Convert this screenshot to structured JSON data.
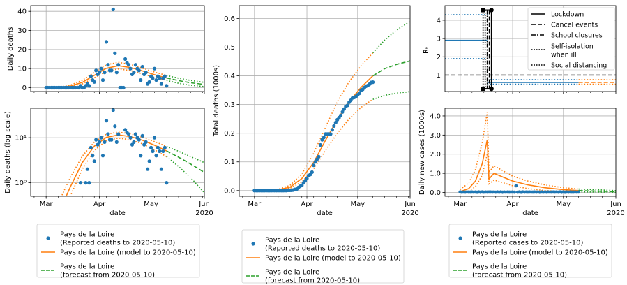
{
  "colors": {
    "reported": "#1f77b4",
    "model": "#ff7f0e",
    "forecast": "#2ca02c",
    "grid": "#b0b0b0"
  },
  "chart_data": [
    {
      "id": "daily",
      "type": "scatter",
      "ylabel": "Daily deaths",
      "xlabel": "",
      "ylim": [
        -2,
        43
      ],
      "yticks": [
        0,
        10,
        20,
        30,
        40
      ],
      "grid": true,
      "reported": {
        "x": [
          "2020-03-01",
          "2020-03-02",
          "2020-03-03",
          "2020-03-04",
          "2020-03-05",
          "2020-03-06",
          "2020-03-07",
          "2020-03-08",
          "2020-03-09",
          "2020-03-10",
          "2020-03-11",
          "2020-03-12",
          "2020-03-13",
          "2020-03-14",
          "2020-03-15",
          "2020-03-16",
          "2020-03-17",
          "2020-03-18",
          "2020-03-19",
          "2020-03-20",
          "2020-03-21",
          "2020-03-22",
          "2020-03-23",
          "2020-03-24",
          "2020-03-25",
          "2020-03-26",
          "2020-03-27",
          "2020-03-28",
          "2020-03-29",
          "2020-03-30",
          "2020-03-31",
          "2020-04-01",
          "2020-04-02",
          "2020-04-03",
          "2020-04-04",
          "2020-04-05",
          "2020-04-06",
          "2020-04-07",
          "2020-04-08",
          "2020-04-09",
          "2020-04-10",
          "2020-04-11",
          "2020-04-12",
          "2020-04-13",
          "2020-04-14",
          "2020-04-15",
          "2020-04-16",
          "2020-04-17",
          "2020-04-18",
          "2020-04-19",
          "2020-04-20",
          "2020-04-21",
          "2020-04-22",
          "2020-04-23",
          "2020-04-24",
          "2020-04-25",
          "2020-04-26",
          "2020-04-27",
          "2020-04-28",
          "2020-04-29",
          "2020-04-30",
          "2020-05-01",
          "2020-05-02",
          "2020-05-03",
          "2020-05-04",
          "2020-05-05",
          "2020-05-06",
          "2020-05-07",
          "2020-05-08",
          "2020-05-09",
          "2020-05-10"
        ],
        "y": [
          0,
          0,
          0,
          0,
          0,
          0,
          0,
          0,
          0,
          0,
          0,
          0,
          0,
          0,
          0,
          0,
          0,
          0,
          0,
          0,
          1,
          0,
          0,
          1,
          2,
          1,
          6,
          4,
          3,
          9,
          7,
          8,
          10,
          4,
          8,
          24,
          12,
          9,
          9,
          41,
          18,
          8,
          12,
          0,
          0,
          0,
          15,
          13,
          12,
          10,
          7,
          8,
          12,
          10,
          9,
          4,
          11,
          7,
          8,
          2,
          3,
          6,
          5,
          10,
          4,
          6,
          5,
          2,
          5,
          6,
          1
        ]
      },
      "model": {
        "x": [
          "2020-03-01",
          "2020-03-08",
          "2020-03-15",
          "2020-03-22",
          "2020-03-29",
          "2020-04-05",
          "2020-04-12",
          "2020-04-19",
          "2020-04-26",
          "2020-05-03",
          "2020-05-10"
        ],
        "y": [
          0.05,
          0.2,
          0.8,
          2.8,
          6.5,
          10.2,
          11.5,
          10.6,
          8.8,
          6.8,
          5.1
        ]
      },
      "model_low": {
        "x": [
          "2020-03-01",
          "2020-03-08",
          "2020-03-15",
          "2020-03-22",
          "2020-03-29",
          "2020-04-05",
          "2020-04-12",
          "2020-04-19",
          "2020-04-26",
          "2020-05-03",
          "2020-05-10"
        ],
        "y": [
          0.02,
          0.1,
          0.5,
          2.0,
          5.2,
          8.6,
          9.8,
          9.0,
          7.3,
          5.4,
          3.8
        ]
      },
      "model_high": {
        "x": [
          "2020-03-01",
          "2020-03-08",
          "2020-03-15",
          "2020-03-22",
          "2020-03-29",
          "2020-04-05",
          "2020-04-12",
          "2020-04-19",
          "2020-04-26",
          "2020-05-03",
          "2020-05-10"
        ],
        "y": [
          0.1,
          0.35,
          1.3,
          3.9,
          8.0,
          12.0,
          13.3,
          12.2,
          10.2,
          8.2,
          6.4
        ]
      },
      "forecast": {
        "x": [
          "2020-05-10",
          "2020-05-17",
          "2020-05-24",
          "2020-06-01"
        ],
        "y": [
          5.1,
          3.7,
          2.6,
          1.7
        ]
      },
      "forecast_low": {
        "x": [
          "2020-05-10",
          "2020-05-17",
          "2020-05-24",
          "2020-06-01"
        ],
        "y": [
          3.8,
          2.3,
          1.3,
          0.6
        ]
      },
      "forecast_high": {
        "x": [
          "2020-05-10",
          "2020-05-17",
          "2020-05-24",
          "2020-06-01"
        ],
        "y": [
          6.4,
          5.0,
          3.8,
          2.8
        ]
      }
    },
    {
      "id": "daily_log",
      "type": "scatter",
      "ylabel": "Daily deaths (log scale)",
      "xlabel": "date",
      "yscale": "log",
      "ylim": [
        0.5,
        45
      ],
      "yticks": [
        1,
        10
      ],
      "ytick_labels": [
        "10⁰",
        "10¹"
      ],
      "xticks": [
        "Mar",
        "Apr",
        "May",
        "Jun"
      ],
      "xtick_extra": "2020",
      "grid": true
    },
    {
      "id": "total",
      "type": "scatter",
      "ylabel": "Total deaths (1000s)",
      "xlabel": "date",
      "ylim": [
        -0.02,
        0.645
      ],
      "yticks": [
        0.0,
        0.1,
        0.2,
        0.3,
        0.4,
        0.5,
        0.6
      ],
      "ytick_labels": [
        "0.0",
        "0.1",
        "0.2",
        "0.3",
        "0.4",
        "0.5",
        "0.6"
      ],
      "xticks": [
        "Mar",
        "Apr",
        "May",
        "Jun"
      ],
      "xtick_extra": "2020",
      "grid": true,
      "model": {
        "x": [
          "2020-03-01",
          "2020-03-08",
          "2020-03-15",
          "2020-03-22",
          "2020-03-29",
          "2020-04-05",
          "2020-04-12",
          "2020-04-19",
          "2020-04-26",
          "2020-05-03",
          "2020-05-10"
        ],
        "y": [
          0.0,
          0.0,
          0.003,
          0.012,
          0.042,
          0.098,
          0.175,
          0.248,
          0.31,
          0.36,
          0.4
        ]
      },
      "model_low": {
        "x": [
          "2020-03-01",
          "2020-03-08",
          "2020-03-15",
          "2020-03-22",
          "2020-03-29",
          "2020-04-05",
          "2020-04-12",
          "2020-04-19",
          "2020-04-26",
          "2020-05-03",
          "2020-05-10"
        ],
        "y": [
          0.0,
          0.0,
          0.002,
          0.008,
          0.03,
          0.075,
          0.14,
          0.2,
          0.25,
          0.29,
          0.318
        ]
      },
      "model_high": {
        "x": [
          "2020-03-01",
          "2020-03-08",
          "2020-03-15",
          "2020-03-22",
          "2020-03-29",
          "2020-04-05",
          "2020-04-12",
          "2020-04-19",
          "2020-04-26",
          "2020-05-03",
          "2020-05-10"
        ],
        "y": [
          0.0,
          0.001,
          0.005,
          0.018,
          0.058,
          0.13,
          0.22,
          0.31,
          0.38,
          0.435,
          0.48
        ]
      },
      "forecast": {
        "x": [
          "2020-05-10",
          "2020-05-17",
          "2020-05-24",
          "2020-06-01"
        ],
        "y": [
          0.4,
          0.425,
          0.44,
          0.452
        ]
      },
      "forecast_low": {
        "x": [
          "2020-05-10",
          "2020-05-17",
          "2020-05-24",
          "2020-06-01"
        ],
        "y": [
          0.318,
          0.332,
          0.34,
          0.345
        ]
      },
      "forecast_high": {
        "x": [
          "2020-05-10",
          "2020-05-17",
          "2020-05-24",
          "2020-06-01"
        ],
        "y": [
          0.48,
          0.525,
          0.56,
          0.59
        ]
      }
    },
    {
      "id": "rt",
      "type": "line",
      "ylabel": "Rₜ",
      "xlabel": "",
      "ylim": [
        0.1,
        4.8
      ],
      "yticks": [
        1,
        2,
        3,
        4
      ],
      "grid": true,
      "interventions_date": "2020-03-17",
      "rt_before": 2.9,
      "rt_before_low": 1.9,
      "rt_before_high": 4.3,
      "rt_after": 0.6,
      "rt_after_low": 0.5,
      "rt_after_high": 0.75,
      "legend": [
        "Lockdown",
        "Cancel events",
        "School closures",
        "Self-isolation\nwhen ill",
        "Social distancing"
      ],
      "legend_position": "top-right"
    },
    {
      "id": "cases",
      "type": "scatter",
      "ylabel": "Daily new cases (1000s)",
      "xlabel": "date",
      "ylim": [
        -0.2,
        4.4
      ],
      "yticks": [
        0,
        1,
        2,
        3,
        4
      ],
      "ytick_labels": [
        "0.0",
        "1.0",
        "2.0",
        "3.0",
        "4.0"
      ],
      "xticks": [
        "Mar",
        "Apr",
        "May",
        "Jun"
      ],
      "xtick_extra": "2020",
      "grid": true,
      "model": {
        "x": [
          "2020-03-01",
          "2020-03-06",
          "2020-03-10",
          "2020-03-14",
          "2020-03-17",
          "2020-03-18",
          "2020-03-21",
          "2020-03-25",
          "2020-04-01",
          "2020-04-10",
          "2020-04-20",
          "2020-05-01",
          "2020-05-10"
        ],
        "y": [
          0.05,
          0.2,
          0.6,
          1.5,
          2.75,
          0.7,
          1.0,
          0.85,
          0.6,
          0.4,
          0.25,
          0.15,
          0.1
        ]
      },
      "model_low": {
        "x": [
          "2020-03-01",
          "2020-03-06",
          "2020-03-10",
          "2020-03-14",
          "2020-03-17",
          "2020-03-18",
          "2020-03-21",
          "2020-03-25",
          "2020-04-01",
          "2020-04-10",
          "2020-04-20",
          "2020-05-01",
          "2020-05-10"
        ],
        "y": [
          0.02,
          0.08,
          0.3,
          0.9,
          2.0,
          0.45,
          0.65,
          0.55,
          0.35,
          0.2,
          0.1,
          0.06,
          0.03
        ]
      },
      "model_high": {
        "x": [
          "2020-03-01",
          "2020-03-06",
          "2020-03-10",
          "2020-03-14",
          "2020-03-17",
          "2020-03-18",
          "2020-03-21",
          "2020-03-25",
          "2020-04-01",
          "2020-04-10",
          "2020-04-20",
          "2020-05-01",
          "2020-05-10"
        ],
        "y": [
          0.15,
          0.5,
          1.2,
          2.6,
          4.2,
          1.05,
          1.4,
          1.2,
          0.85,
          0.6,
          0.4,
          0.25,
          0.18
        ]
      },
      "forecast": {
        "x": [
          "2020-05-10",
          "2020-06-01"
        ],
        "y": [
          0.1,
          0.04
        ]
      },
      "forecast_low": {
        "x": [
          "2020-05-10",
          "2020-06-01"
        ],
        "y": [
          0.03,
          0.01
        ]
      },
      "forecast_high": {
        "x": [
          "2020-05-10",
          "2020-06-01"
        ],
        "y": [
          0.18,
          0.1
        ]
      },
      "reported_hump": {
        "date": "2020-04-03",
        "value": 0.35
      }
    }
  ],
  "legends": {
    "left": [
      "Pays de la Loire\n(Reported deaths to  2020-05-10)",
      "Pays de la Loire (model to  2020-05-10)",
      "Pays de la Loire\n(forecast from  2020-05-10)"
    ],
    "middle": [
      "Pays de la Loire\n(Reported deaths to  2020-05-10)",
      "Pays de la Loire (model to  2020-05-10)",
      "Pays de la Loire\n(forecast from  2020-05-10)"
    ],
    "right": [
      "Pays de la Loire\n(Reported cases to  2020-05-10)",
      "Pays de la Loire (model to  2020-05-10)",
      "Pays de la Loire\n(forecast from  2020-05-10)"
    ]
  }
}
